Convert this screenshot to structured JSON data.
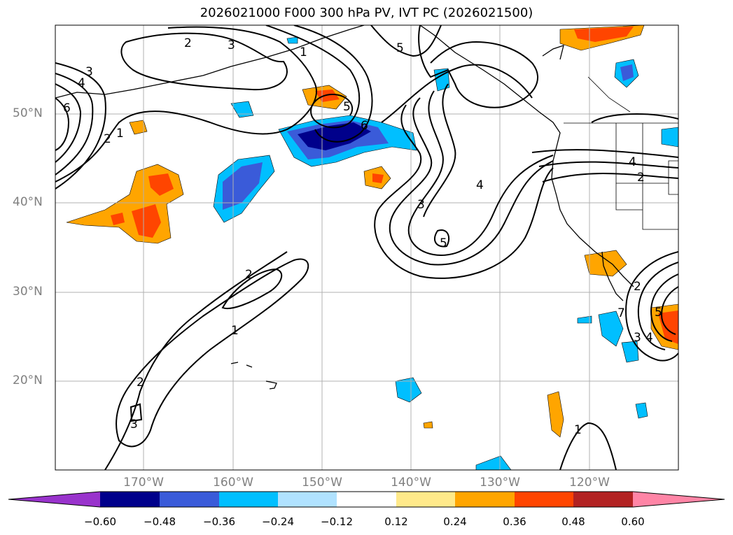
{
  "title": "2026021000 F000 300 hPa PV, IVT PC (2026021500)",
  "lat_labels": [
    "50°N",
    "40°N",
    "30°N",
    "20°N"
  ],
  "lon_labels": [
    "170°W",
    "160°W",
    "150°W",
    "140°W",
    "130°W",
    "120°W"
  ],
  "colorbar": {
    "ticks": [
      "−0.60",
      "−0.48",
      "−0.36",
      "−0.24",
      "−0.12",
      "0.12",
      "0.24",
      "0.36",
      "0.48",
      "0.60"
    ],
    "colors": [
      "#9933cc",
      "#00008b",
      "#3a5bd9",
      "#00bfff",
      "#b0e2ff",
      "#ffffff",
      "#ffe98a",
      "#ffa500",
      "#ff4500",
      "#b22222",
      "#ff85a6"
    ]
  },
  "contour_labels": [
    "3",
    "4",
    "6",
    "2",
    "1",
    "2",
    "3",
    "1",
    "5",
    "5",
    "6",
    "4",
    "3",
    "5",
    "4",
    "2",
    "2",
    "1",
    "2",
    "3",
    "1",
    "2",
    "5",
    "7",
    "3",
    "4"
  ]
}
